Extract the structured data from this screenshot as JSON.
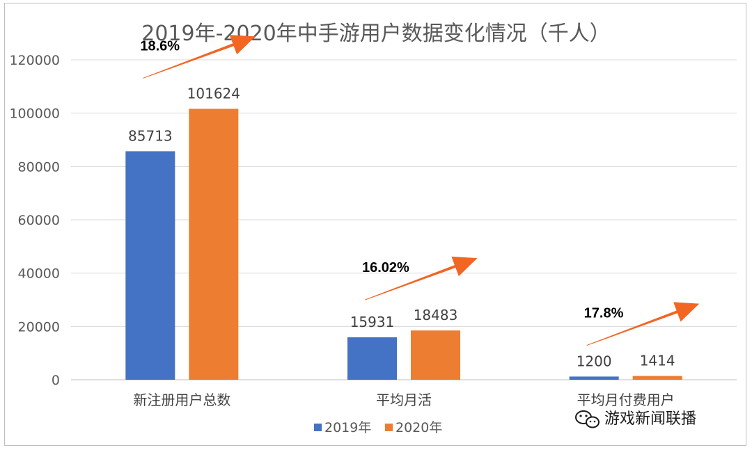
{
  "chart_data": {
    "type": "bar",
    "title": "2019年-2020年中手游用户数据变化情况（千人）",
    "categories": [
      "新注册用户总数",
      "平均月活",
      "平均月付费用户"
    ],
    "series": [
      {
        "name": "2019年",
        "values": [
          85713,
          15931,
          1200
        ],
        "color": "#4472c4"
      },
      {
        "name": "2020年",
        "values": [
          101624,
          18483,
          1414
        ],
        "color": "#ed7d31"
      }
    ],
    "ylim": [
      0,
      120000
    ],
    "yticks": [
      0,
      20000,
      40000,
      60000,
      80000,
      100000,
      120000
    ],
    "grid": true,
    "legend_position": "bottom",
    "annotations": [
      {
        "category": "新注册用户总数",
        "text": "18.6%"
      },
      {
        "category": "平均月活",
        "text": "16.02%"
      },
      {
        "category": "平均月付费用户",
        "text": "17.8%"
      }
    ],
    "arrow_color": "#f26522"
  },
  "watermark": {
    "text": "游戏新闻联播",
    "icon": "wechat-icon"
  }
}
